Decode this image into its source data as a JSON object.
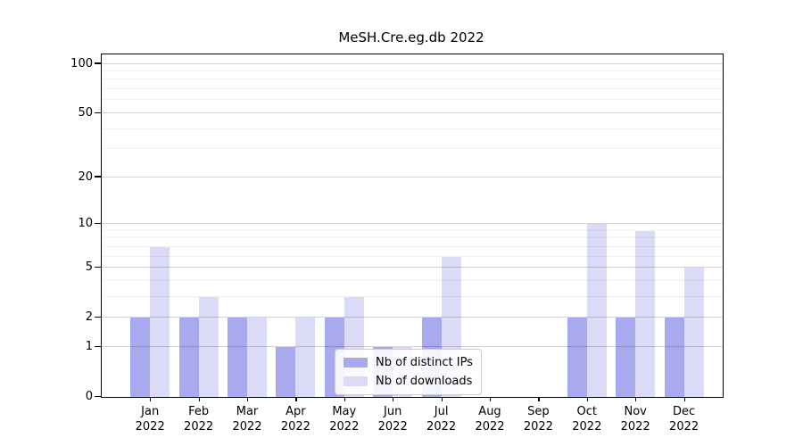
{
  "title": "MeSH.Cre.eg.db 2022",
  "chart_data": {
    "type": "bar",
    "categories": [
      "Jan",
      "Feb",
      "Mar",
      "Apr",
      "May",
      "Jun",
      "Jul",
      "Aug",
      "Sep",
      "Oct",
      "Nov",
      "Dec"
    ],
    "year": "2022",
    "series": [
      {
        "name": "Nb of distinct IPs",
        "color": "#a9a9f0",
        "values": [
          2,
          2,
          2,
          1,
          2,
          1,
          2,
          0,
          0,
          2,
          2,
          2
        ]
      },
      {
        "name": "Nb of downloads",
        "color": "#dbdbf8",
        "values": [
          7,
          3,
          2,
          2,
          3,
          1,
          6,
          0,
          0,
          10,
          9,
          5
        ]
      }
    ],
    "title": "MeSH.Cre.eg.db 2022",
    "xlabel": "",
    "ylabel": "",
    "y_scale": "log1p",
    "ylim": [
      0,
      114
    ],
    "y_major_ticks": [
      0,
      1,
      2,
      5,
      10,
      20,
      50,
      100
    ],
    "y_minor_ticks": [
      3,
      4,
      6,
      7,
      8,
      9,
      30,
      40,
      60,
      70,
      80,
      90
    ],
    "grid": true,
    "legend_position": "lower-center"
  }
}
